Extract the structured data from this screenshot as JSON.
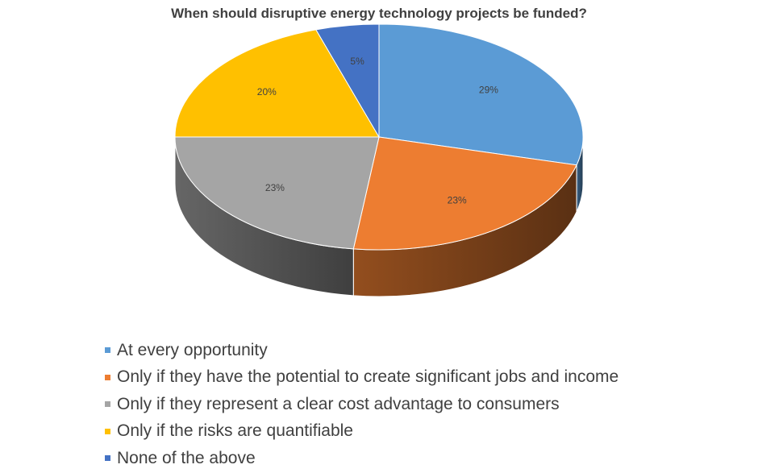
{
  "chart_data": {
    "type": "pie",
    "title": "When should disruptive energy technology projects be funded?",
    "slices": [
      {
        "label": "At every opportunity",
        "value": 29,
        "data_label": "29%",
        "color": "#5b9bd5"
      },
      {
        "label": "Only if they have the potential to create significant jobs and income",
        "value": 23,
        "data_label": "23%",
        "color": "#ed7d31"
      },
      {
        "label": "Only if they represent a clear cost advantage to consumers",
        "value": 23,
        "data_label": "23%",
        "color": "#a5a5a5"
      },
      {
        "label": "Only if the risks are quantifiable",
        "value": 20,
        "data_label": "20%",
        "color": "#ffc000"
      },
      {
        "label": "None of the above",
        "value": 5,
        "data_label": "5%",
        "color": "#4472c4"
      }
    ],
    "legend_position": "bottom-left"
  }
}
